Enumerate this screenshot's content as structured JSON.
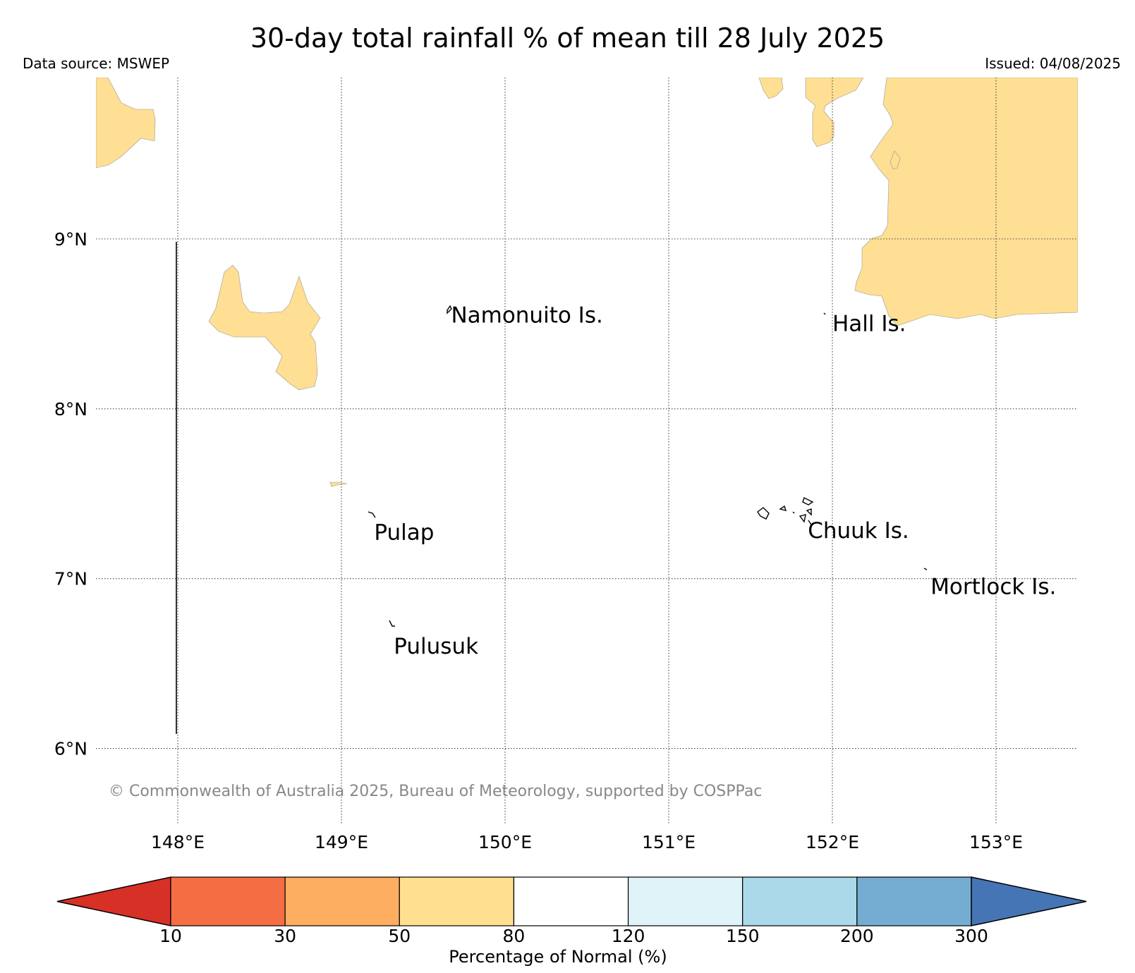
{
  "title": "30-day total rainfall % of mean till 28 July 2025",
  "data_source": "Data source: MSWEP",
  "issued": "Issued: 04/08/2025",
  "copyright": "© Commonwealth of Australia 2025, Bureau of Meteorology, supported by COSPPac",
  "map": {
    "lon_range": [
      147.5,
      153.5
    ],
    "lat_range": [
      5.55,
      9.95
    ],
    "lat_ticks": [
      {
        "value": 9,
        "label": "9°N"
      },
      {
        "value": 8,
        "label": "8°N"
      },
      {
        "value": 7,
        "label": "7°N"
      },
      {
        "value": 6,
        "label": "6°N"
      }
    ],
    "lon_ticks": [
      {
        "value": 148,
        "label": "148°E"
      },
      {
        "value": 149,
        "label": "149°E"
      },
      {
        "value": 150,
        "label": "150°E"
      },
      {
        "value": 151,
        "label": "151°E"
      },
      {
        "value": 152,
        "label": "152°E"
      },
      {
        "value": 153,
        "label": "153°E"
      }
    ],
    "grid": "dotted",
    "places": [
      {
        "name": "Namonuito Is.",
        "lon": 149.67,
        "lat": 8.55
      },
      {
        "name": "Hall Is.",
        "lon": 152.0,
        "lat": 8.5
      },
      {
        "name": "Pulap",
        "lon": 149.2,
        "lat": 7.27
      },
      {
        "name": "Chuuk Is.",
        "lon": 151.85,
        "lat": 7.28
      },
      {
        "name": "Mortlock Is.",
        "lon": 152.6,
        "lat": 6.95
      },
      {
        "name": "Pulusuk",
        "lon": 149.32,
        "lat": 6.6
      }
    ],
    "shaded_category": "50–80 %",
    "shaded_color": "#fedf93",
    "background_category": "80–120 %"
  },
  "colorbar": {
    "label": "Percentage of Normal (%)",
    "ticks": [
      "10",
      "30",
      "50",
      "80",
      "120",
      "150",
      "200",
      "300"
    ],
    "colors": [
      "#d73027",
      "#f46d43",
      "#fdae61",
      "#fee090",
      "#ffffff",
      "#e0f3f8",
      "#abd9e9",
      "#74add1",
      "#4575b4"
    ]
  }
}
